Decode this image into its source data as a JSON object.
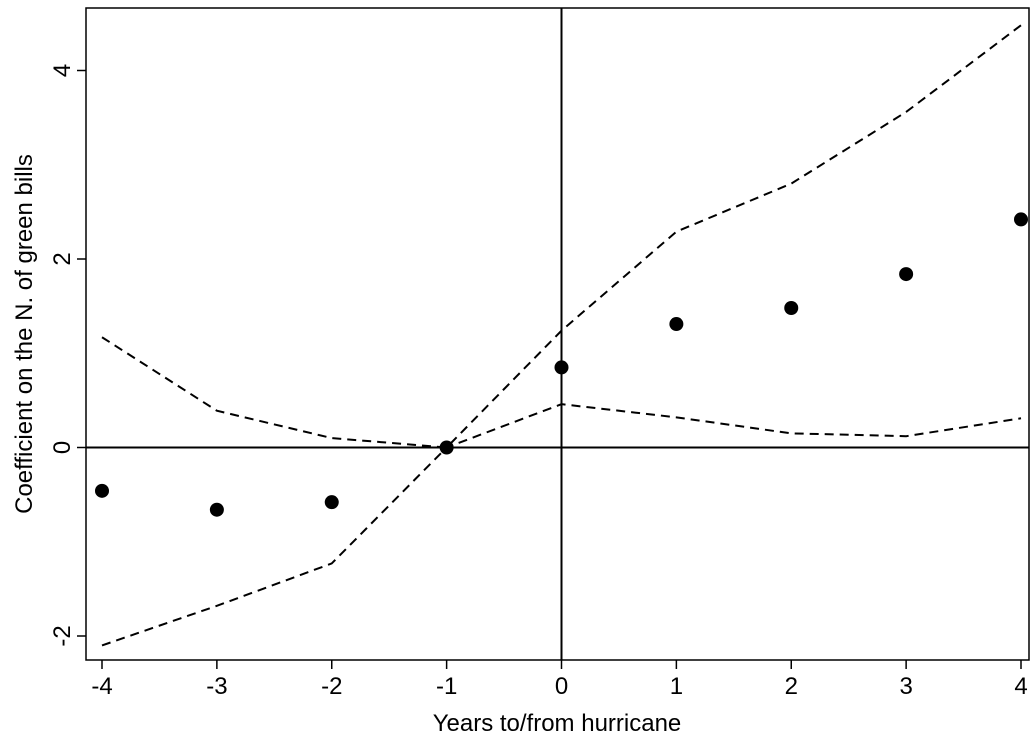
{
  "chart_data": {
    "type": "scatter",
    "title": "",
    "xlabel": "Years to/from hurricane",
    "ylabel": "Coefficient on the N. of green bills",
    "xlim": [
      -4.1,
      4.1
    ],
    "ylim": [
      -2.2,
      4.65
    ],
    "xticks": [
      "-4",
      "-3",
      "-2",
      "-1",
      "0",
      "1",
      "2",
      "3",
      "4"
    ],
    "yticks": [
      "-2",
      "0",
      "2",
      "4"
    ],
    "x": [
      -4,
      -3,
      -2,
      -1,
      0,
      1,
      2,
      3,
      4
    ],
    "series": [
      {
        "role": "point-estimate",
        "style": "dots",
        "values": [
          -0.46,
          -0.66,
          -0.58,
          0.0,
          0.85,
          1.31,
          1.48,
          1.84,
          2.42
        ]
      },
      {
        "role": "upper-ci",
        "style": "dashed",
        "values": [
          1.17,
          0.39,
          0.1,
          0.0,
          1.24,
          2.29,
          2.8,
          3.56,
          4.48
        ]
      },
      {
        "role": "lower-ci",
        "style": "dashed",
        "values": [
          -2.1,
          -1.68,
          -1.23,
          0.0,
          0.46,
          0.32,
          0.15,
          0.12,
          0.31
        ]
      }
    ],
    "reference_lines": {
      "x": 0,
      "y": 0
    },
    "grid": false,
    "legend": "none",
    "colors": {
      "marks": "#000000",
      "background": "#ffffff"
    }
  }
}
